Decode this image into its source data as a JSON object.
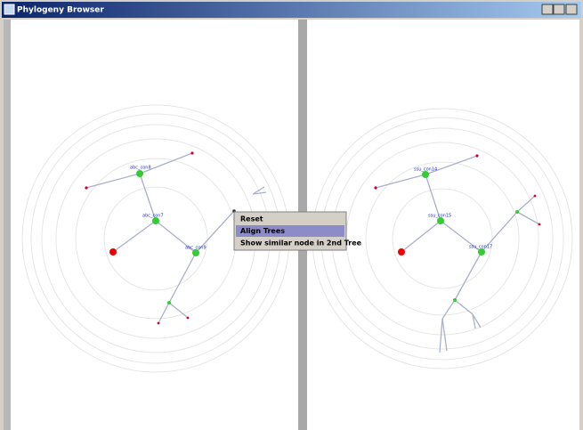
{
  "window": {
    "title": "Phylogeny Browser"
  },
  "context_menu": {
    "items": [
      "Reset",
      "Align Trees",
      "Show similar node in 2nd Tree"
    ]
  },
  "trees": [
    {
      "labels": [
        "abc_con8",
        "abc_con7",
        "abc_con9"
      ]
    },
    {
      "labels": [
        "ssu_con14",
        "ssu_con15",
        "ssu_con17"
      ]
    }
  ]
}
